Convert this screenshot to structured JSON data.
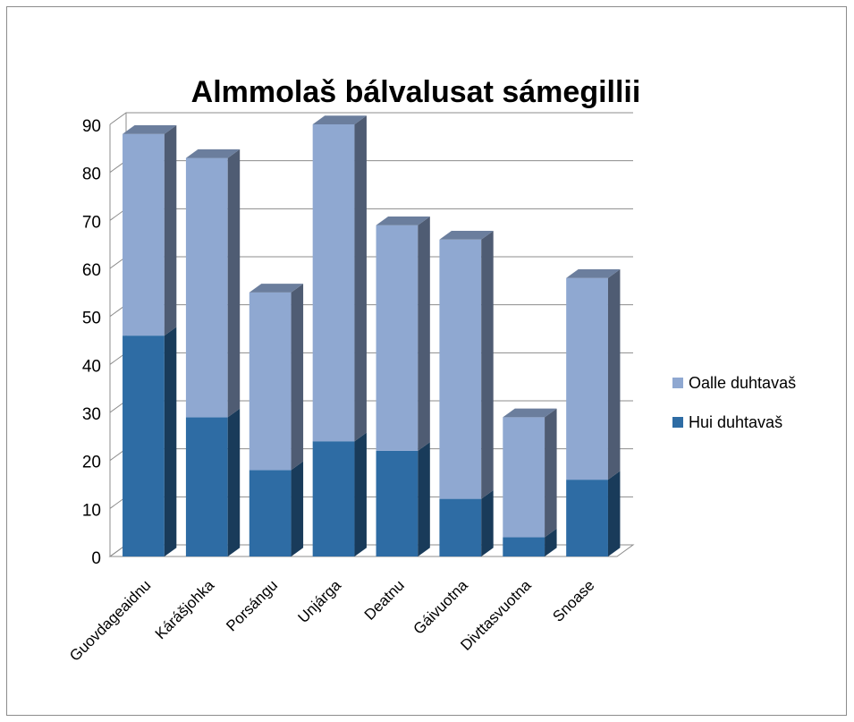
{
  "chart_data": {
    "type": "bar3d_stacked",
    "title": "Almmolaš bálvalusat sámegillii",
    "categories": [
      "Guovdageaidnu",
      "Kárášjohka",
      "Porsángu",
      "Unjárga",
      "Deatnu",
      "Gáivuotna",
      "Divttasvuotna",
      "Snoase"
    ],
    "series": [
      {
        "name": "Hui duhtavaš",
        "color": "#2e6ca4",
        "values": [
          46,
          29,
          18,
          24,
          22,
          12,
          4,
          16
        ]
      },
      {
        "name": "Oalle duhtavaš",
        "color": "#8fa8d1",
        "values": [
          42,
          54,
          37,
          66,
          47,
          54,
          25,
          42
        ]
      }
    ],
    "ylim": [
      0,
      90
    ],
    "yticks": [
      0,
      10,
      20,
      30,
      40,
      50,
      60,
      70,
      80,
      90
    ],
    "grid": true,
    "legend": "right"
  }
}
